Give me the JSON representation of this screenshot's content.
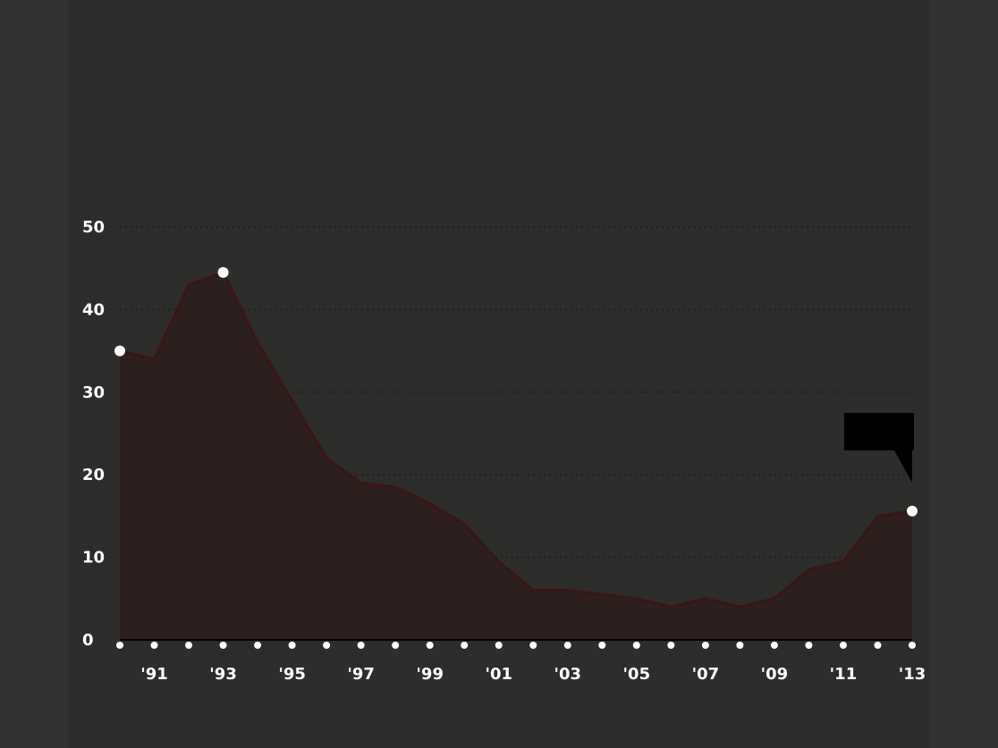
{
  "texts": {
    "title": "",
    "subtitle": "",
    "axis_label": "",
    "note": "",
    "source": "",
    "credit": "",
    "callout": ""
  },
  "chart_data": {
    "type": "area",
    "x": [
      1990,
      1991,
      1992,
      1993,
      1994,
      1995,
      1996,
      1997,
      1998,
      1999,
      2000,
      2001,
      2002,
      2003,
      2004,
      2005,
      2006,
      2007,
      2008,
      2009,
      2010,
      2011,
      2012,
      2013
    ],
    "series": [
      {
        "values": [
          35,
          34,
          43,
          44.5,
          36,
          29,
          22,
          19,
          18.5,
          16.5,
          14,
          9.5,
          6,
          6,
          5.5,
          5,
          4,
          5,
          4,
          5,
          8.5,
          9.5,
          15,
          15.6
        ]
      }
    ],
    "y_tick_labels": [
      "0",
      "10",
      "20",
      "30",
      "40",
      "50"
    ],
    "ylim": [
      0,
      50
    ],
    "grid": "horizontal dotted",
    "line_color": "#3a1515",
    "fill_color": "#2d1f1d"
  }
}
